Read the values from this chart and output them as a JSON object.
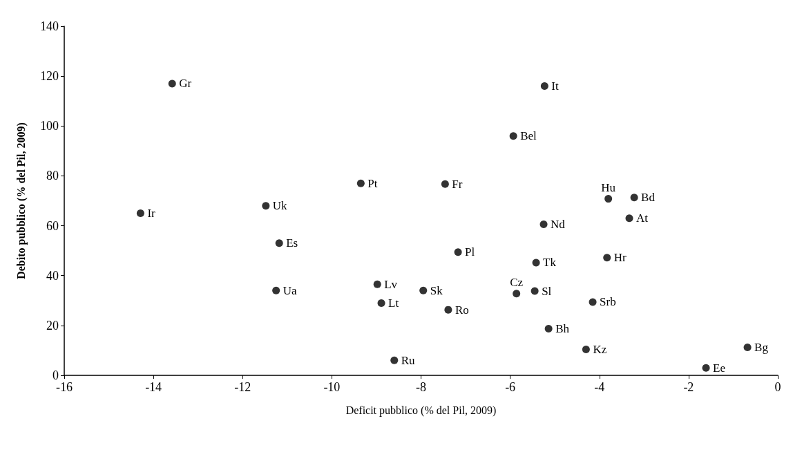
{
  "chart_data": {
    "type": "scatter",
    "xlabel": "Deficit pubblico (% del Pil, 2009)",
    "ylabel": "Debito pubblico (% del Pil, 2009)",
    "x": [
      -13.58,
      -14.29,
      -11.48,
      -11.18,
      -11.25,
      -9.35,
      -8.98,
      -8.89,
      -7.95,
      -8.6,
      -5.23,
      -5.93,
      -7.46,
      -3.8,
      -3.22,
      -3.33,
      -5.25,
      -7.17,
      -5.42,
      -3.83,
      -7.39,
      -5.86,
      -5.45,
      -4.15,
      -5.14,
      -4.3,
      -1.61,
      -0.68
    ],
    "values": [
      117,
      65,
      68,
      53,
      34,
      77,
      36.5,
      29,
      34,
      6,
      116,
      96,
      76.7,
      70.8,
      71.3,
      63,
      60.6,
      49.4,
      45.2,
      47.2,
      26.3,
      32.8,
      33.8,
      29.4,
      18.7,
      10.4,
      3,
      11.2
    ],
    "color": "#000000",
    "marker": "circle",
    "grid": false,
    "xlim": [
      -16,
      0
    ],
    "xticks": [
      -16,
      -14,
      -12,
      -10,
      -8,
      -6,
      -4,
      -2,
      0
    ],
    "ylim": [
      0,
      140
    ],
    "yticks": [
      0,
      20,
      40,
      60,
      80,
      100,
      120,
      140
    ],
    "annotations": [
      {
        "text": "Gr",
        "x": -13.58,
        "y": 117
      },
      {
        "text": "Ir",
        "x": -14.29,
        "y": 65
      },
      {
        "text": "Uk",
        "x": -11.48,
        "y": 68
      },
      {
        "text": "Es",
        "x": -11.18,
        "y": 53
      },
      {
        "text": "Ua",
        "x": -11.25,
        "y": 34
      },
      {
        "text": "Pt",
        "x": -9.35,
        "y": 77
      },
      {
        "text": "Lv",
        "x": -8.98,
        "y": 36.5
      },
      {
        "text": "Lt",
        "x": -8.89,
        "y": 29
      },
      {
        "text": "Sk",
        "x": -7.95,
        "y": 34
      },
      {
        "text": "Ru",
        "x": -8.6,
        "y": 6
      },
      {
        "text": "It",
        "x": -5.23,
        "y": 116
      },
      {
        "text": "Bel",
        "x": -5.93,
        "y": 96
      },
      {
        "text": "Fr",
        "x": -7.46,
        "y": 76.7
      },
      {
        "text": "Hu",
        "x": -3.8,
        "y": 70.8
      },
      {
        "text": "Bd",
        "x": -3.22,
        "y": 71.3
      },
      {
        "text": "At",
        "x": -3.33,
        "y": 63
      },
      {
        "text": "Nd",
        "x": -5.25,
        "y": 60.6
      },
      {
        "text": "Pl",
        "x": -7.17,
        "y": 49.4
      },
      {
        "text": "Tk",
        "x": -5.42,
        "y": 45.2
      },
      {
        "text": "Hr",
        "x": -3.83,
        "y": 47.2
      },
      {
        "text": "Ro",
        "x": -7.39,
        "y": 26.3
      },
      {
        "text": "Cz",
        "x": -5.86,
        "y": 32.8
      },
      {
        "text": "Sl",
        "x": -5.45,
        "y": 33.8
      },
      {
        "text": "Srb",
        "x": -4.15,
        "y": 29.4
      },
      {
        "text": "Bh",
        "x": -5.14,
        "y": 18.7
      },
      {
        "text": "Kz",
        "x": -4.3,
        "y": 10.4
      },
      {
        "text": "Ee",
        "x": -1.61,
        "y": 3
      },
      {
        "text": "Bg",
        "x": -0.68,
        "y": 11.2
      }
    ]
  }
}
